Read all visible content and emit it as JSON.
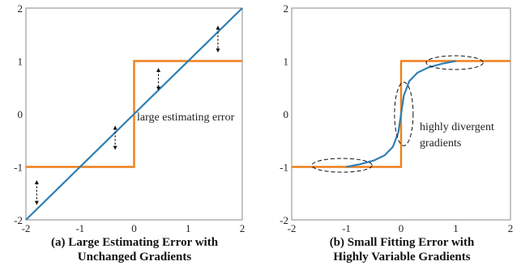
{
  "chart_data": [
    {
      "type": "line",
      "panel": "a",
      "caption_line1": "(a)  Large Estimating Error with",
      "caption_line2": "Unchanged Gradients",
      "xlim": [
        -2,
        2
      ],
      "ylim": [
        -2,
        2
      ],
      "xticks": [
        "-2",
        "-1",
        "0",
        "1",
        "2"
      ],
      "yticks": [
        "-2",
        "-1",
        "0",
        "1",
        "2"
      ],
      "colors": {
        "step": "#f07f1a",
        "estimate": "#2f7fb5"
      },
      "series": [
        {
          "x": [
            -2,
            0,
            0,
            2
          ],
          "y": [
            -1,
            -1,
            1,
            1
          ]
        },
        {
          "x": [
            -2,
            2
          ],
          "y": [
            -2,
            2
          ]
        }
      ],
      "annotation": "large estimating error",
      "error_arrows": [
        {
          "x": -1.8,
          "y1": -1.25,
          "y2": -1.72
        },
        {
          "x": -0.35,
          "y1": -0.22,
          "y2": -0.68
        },
        {
          "x": 0.45,
          "y1": 0.44,
          "y2": 0.87
        },
        {
          "x": 1.55,
          "y1": 1.16,
          "y2": 1.67
        }
      ]
    },
    {
      "type": "line",
      "panel": "b",
      "caption_line1": "(b) Small Fitting Error with",
      "caption_line2": "Highly Variable Gradients",
      "xlim": [
        -2,
        2
      ],
      "ylim": [
        -2,
        2
      ],
      "xticks": [
        "-2",
        "-1",
        "0",
        "1",
        "2"
      ],
      "yticks": [
        "-2",
        "-1",
        "0",
        "1",
        "2"
      ],
      "colors": {
        "step": "#f07f1a",
        "estimate": "#2f7fb5"
      },
      "series": [
        {
          "x": [
            -2,
            0,
            0,
            2
          ],
          "y": [
            -1,
            -1,
            1,
            1
          ]
        },
        {
          "x": [
            -1,
            -0.75,
            -0.5,
            -0.3,
            -0.15,
            -0.05,
            0,
            0.05,
            0.15,
            0.3,
            0.5,
            0.75,
            1
          ],
          "y": [
            -1,
            -0.95,
            -0.88,
            -0.78,
            -0.62,
            -0.35,
            0,
            0.35,
            0.62,
            0.78,
            0.88,
            0.95,
            1
          ]
        }
      ],
      "annotation_line1": "highly divergent",
      "annotation_line2": "gradients",
      "ellipses": [
        {
          "cx": -1.08,
          "cy": -0.97,
          "rx": 0.55,
          "ry": 0.13
        },
        {
          "cx": 0.05,
          "cy": 0.0,
          "rx": 0.17,
          "ry": 0.6
        },
        {
          "cx": 0.98,
          "cy": 0.97,
          "rx": 0.52,
          "ry": 0.13
        }
      ]
    }
  ]
}
